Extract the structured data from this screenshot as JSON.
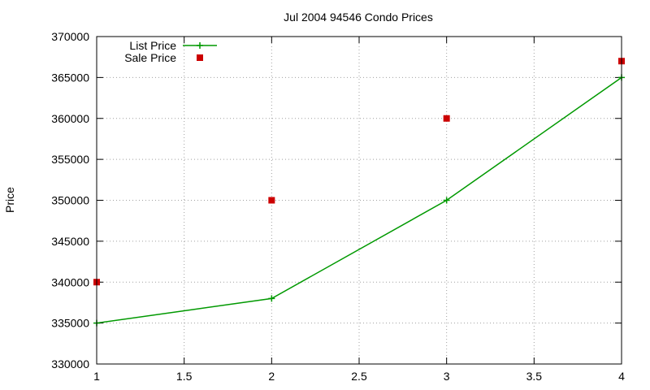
{
  "chart_data": {
    "type": "line",
    "title": "Jul 2004 94546 Condo Prices",
    "xlabel": "",
    "ylabel": "Price",
    "x": [
      1,
      2,
      3,
      4
    ],
    "xlim": [
      1,
      4
    ],
    "ylim": [
      330000,
      370000
    ],
    "xticks": [
      1,
      1.5,
      2,
      2.5,
      3,
      3.5,
      4
    ],
    "yticks": [
      330000,
      335000,
      340000,
      345000,
      350000,
      355000,
      360000,
      365000,
      370000
    ],
    "grid": true,
    "legend_position": "top-left",
    "series": [
      {
        "name": "List Price",
        "style": "line+cross",
        "color": "#009900",
        "values": [
          335000,
          338000,
          350000,
          365000
        ]
      },
      {
        "name": "Sale Price",
        "style": "square",
        "color": "#cc0000",
        "values": [
          340000,
          350000,
          360000,
          367000
        ]
      }
    ]
  }
}
